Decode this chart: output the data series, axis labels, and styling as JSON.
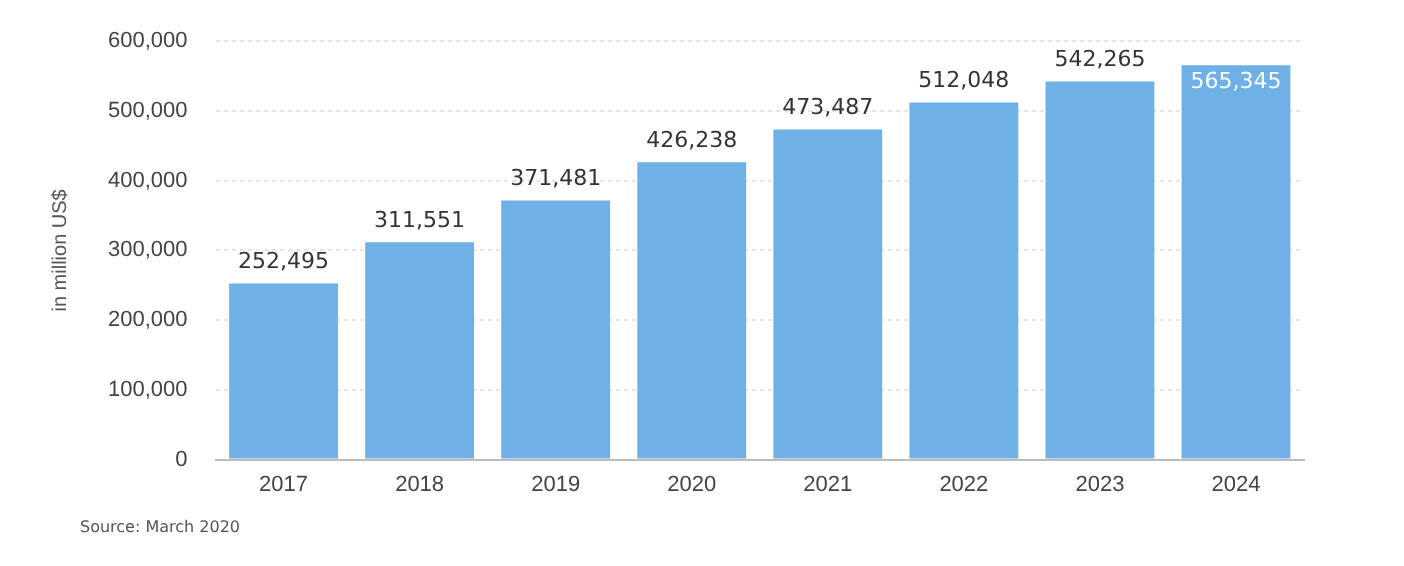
{
  "chart_data": {
    "type": "bar",
    "ylabel": "in million US$",
    "categories": [
      "2017",
      "2018",
      "2019",
      "2020",
      "2021",
      "2022",
      "2023",
      "2024"
    ],
    "values": [
      252495,
      311551,
      371481,
      426238,
      473487,
      512048,
      542265,
      565345
    ],
    "value_labels": [
      "252,495",
      "311,551",
      "371,481",
      "426,238",
      "473,487",
      "512,048",
      "542,265",
      "565,345"
    ],
    "color": "#6fb0e6",
    "ylim": [
      0,
      600000
    ],
    "yticks": [
      0,
      {
        "value": 100000,
        "label": "100,000"
      },
      {
        "value": 200000,
        "label": "200,000"
      },
      {
        "value": 300000,
        "label": "300,000"
      },
      {
        "value": 400000,
        "label": "400,000"
      },
      {
        "value": 500000,
        "label": "500,000"
      },
      {
        "value": 600000,
        "label": "600,000"
      }
    ],
    "grid": "y",
    "legend": false,
    "annotations": [
      "Source: March 2020"
    ]
  }
}
